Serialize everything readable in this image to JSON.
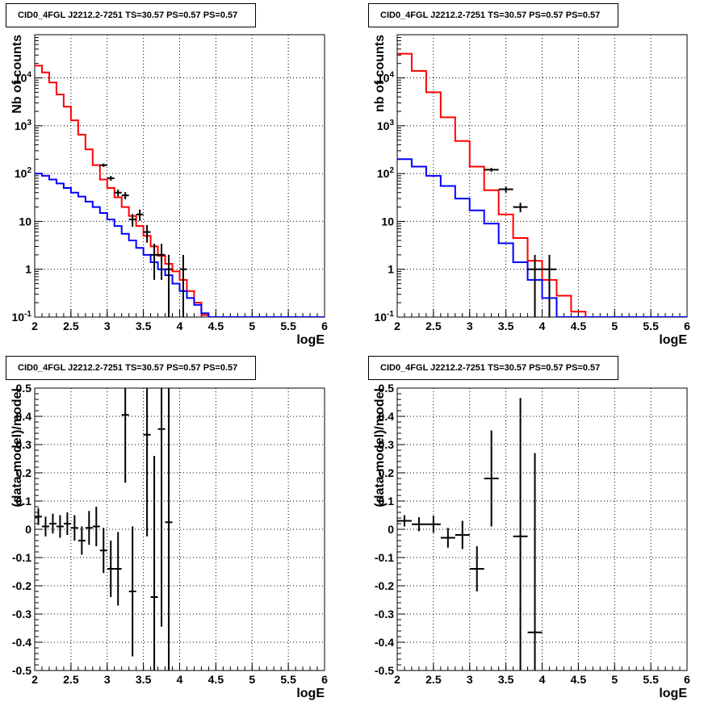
{
  "chart_data": [
    {
      "type": "line",
      "title": "CID0_4FGL J2212.2-7251 TS=30.57 PS=0.57 PS=0.57",
      "xlabel": "logE",
      "ylabel": "Nb of counts",
      "y_scale": "log",
      "xlim": [
        2,
        6
      ],
      "ylim": [
        0.1,
        80000
      ],
      "x_ticks": [
        "2",
        "2.5",
        "3",
        "3.5",
        "4",
        "4.5",
        "5",
        "5.5",
        "6"
      ],
      "y_ticks": [
        "10^-1",
        "1",
        "10",
        "10^2",
        "10^3",
        "10^4"
      ],
      "grid": true,
      "bin_edges": [
        2.0,
        2.1,
        2.2,
        2.3,
        2.4,
        2.5,
        2.6,
        2.7,
        2.8,
        2.9,
        3.0,
        3.1,
        3.2,
        3.3,
        3.4,
        3.5,
        3.6,
        3.7,
        3.8,
        3.9,
        4.0,
        4.1,
        4.2,
        4.3,
        4.4,
        4.5,
        4.6,
        4.7,
        4.8,
        4.9,
        5.0,
        5.1,
        5.2,
        5.3,
        5.4,
        5.5,
        5.6,
        5.7,
        5.8,
        5.9,
        6.0
      ],
      "series": [
        {
          "color": "#ff0000",
          "style": "step",
          "values": [
            18000,
            13000,
            8000,
            4500,
            2500,
            1300,
            650,
            320,
            150,
            75,
            50,
            32,
            20,
            13,
            8,
            5,
            3,
            1.9,
            1.3,
            0.9,
            0.6,
            0.35,
            0.2,
            0.11,
            0.1,
            0.1,
            0.1,
            0.1,
            0.1,
            0.1,
            0.1,
            0.1,
            0.1,
            0.1,
            0.1,
            0.1,
            0.1,
            0.1,
            0.1,
            0.1
          ]
        },
        {
          "color": "#0000ff",
          "style": "step",
          "values": [
            100,
            90,
            75,
            62,
            50,
            40,
            33,
            26,
            20,
            15,
            11,
            8,
            5.5,
            4,
            2.8,
            2,
            1.4,
            1,
            0.75,
            0.5,
            0.35,
            0.25,
            0.18,
            0.12,
            0.1,
            0.1,
            0.1,
            0.1,
            0.1,
            0.1,
            0.1,
            0.1,
            0.1,
            0.1,
            0.1,
            0.1,
            0.1,
            0.1,
            0.1,
            0.1
          ]
        },
        {
          "color": "#000000",
          "style": "points",
          "points": [
            {
              "x": 2.95,
              "y": 150,
              "err": 12
            },
            {
              "x": 3.05,
              "y": 80,
              "err": 9
            },
            {
              "x": 3.15,
              "y": 40,
              "err": 6.5
            },
            {
              "x": 3.25,
              "y": 35,
              "err": 6
            },
            {
              "x": 3.35,
              "y": 11,
              "err": 3.3
            },
            {
              "x": 3.45,
              "y": 14,
              "err": 3.7
            },
            {
              "x": 3.55,
              "y": 6,
              "err": 2.4
            },
            {
              "x": 3.65,
              "y": 2,
              "err": 1.4
            },
            {
              "x": 3.75,
              "y": 2,
              "err": 1.4
            },
            {
              "x": 3.85,
              "y": 1,
              "err": 1.0
            },
            {
              "x": 4.05,
              "y": 1,
              "err": 1.0
            }
          ]
        }
      ]
    },
    {
      "type": "line",
      "title": "CID0_4FGL J2212.2-7251 TS=30.57 PS=0.57 PS=0.57",
      "xlabel": "logE",
      "ylabel": "nb of counts",
      "y_scale": "log",
      "xlim": [
        2,
        6
      ],
      "ylim": [
        0.1,
        80000
      ],
      "x_ticks": [
        "2",
        "2.5",
        "3",
        "3.5",
        "4",
        "4.5",
        "5",
        "5.5",
        "6"
      ],
      "y_ticks": [
        "10^-1",
        "1",
        "10",
        "10^2",
        "10^3",
        "10^4"
      ],
      "grid": true,
      "bin_edges": [
        2.0,
        2.2,
        2.4,
        2.6,
        2.8,
        3.0,
        3.2,
        3.4,
        3.6,
        3.8,
        4.0,
        4.2,
        4.4,
        4.6,
        4.8,
        5.0,
        5.2,
        5.4,
        5.6,
        5.8,
        6.0
      ],
      "series": [
        {
          "color": "#ff0000",
          "style": "step",
          "values": [
            32000,
            14000,
            5000,
            1500,
            480,
            140,
            45,
            14,
            4.5,
            1.5,
            0.6,
            0.28,
            0.13,
            0.1,
            0.1,
            0.1,
            0.1,
            0.1,
            0.1,
            0.1
          ]
        },
        {
          "color": "#0000ff",
          "style": "step",
          "values": [
            200,
            140,
            90,
            55,
            30,
            17,
            9,
            3.5,
            1.4,
            0.6,
            0.25,
            0.1,
            0.1,
            0.1,
            0.1,
            0.1,
            0.1,
            0.1,
            0.1,
            0.1
          ]
        },
        {
          "color": "#000000",
          "style": "points",
          "points": [
            {
              "x": 3.3,
              "y": 120,
              "err": 11
            },
            {
              "x": 3.5,
              "y": 47,
              "err": 6.9
            },
            {
              "x": 3.7,
              "y": 20,
              "err": 4.5
            },
            {
              "x": 3.9,
              "y": 1,
              "err": 1.0
            },
            {
              "x": 4.1,
              "y": 1,
              "err": 1.0
            }
          ]
        }
      ]
    },
    {
      "type": "scatter",
      "title": "CID0_4FGL J2212.2-7251 TS=30.57 PS=0.57 PS=0.57",
      "xlabel": "logE",
      "ylabel": "(data-model)/model",
      "xlim": [
        2,
        6
      ],
      "ylim": [
        -0.5,
        0.5
      ],
      "x_ticks": [
        "2",
        "2.5",
        "3",
        "3.5",
        "4",
        "4.5",
        "5",
        "5.5",
        "6"
      ],
      "y_ticks": [
        "-0.5",
        "-0.4",
        "-0.3",
        "-0.2",
        "-0.1",
        "0",
        "0.1",
        "0.2",
        "0.3",
        "0.4",
        "0.5"
      ],
      "grid": true,
      "x_halfwidth": 0.05,
      "points": [
        {
          "x": 2.05,
          "y": 0.045,
          "err": 0.03
        },
        {
          "x": 2.15,
          "y": 0.01,
          "err": 0.035
        },
        {
          "x": 2.25,
          "y": 0.02,
          "err": 0.035
        },
        {
          "x": 2.35,
          "y": 0.01,
          "err": 0.04
        },
        {
          "x": 2.45,
          "y": 0.02,
          "err": 0.04
        },
        {
          "x": 2.55,
          "y": 0.005,
          "err": 0.045
        },
        {
          "x": 2.65,
          "y": -0.04,
          "err": 0.05
        },
        {
          "x": 2.75,
          "y": 0.005,
          "err": 0.06
        },
        {
          "x": 2.85,
          "y": 0.01,
          "err": 0.07
        },
        {
          "x": 2.95,
          "y": -0.075,
          "err": 0.08
        },
        {
          "x": 3.05,
          "y": -0.14,
          "err": 0.1
        },
        {
          "x": 3.15,
          "y": -0.14,
          "err": 0.13
        },
        {
          "x": 3.25,
          "y": 0.405,
          "err": 0.24
        },
        {
          "x": 3.35,
          "y": -0.22,
          "err": 0.23
        },
        {
          "x": 3.55,
          "y": 0.335,
          "err": 0.36
        },
        {
          "x": 3.65,
          "y": -0.24,
          "err": 0.5
        },
        {
          "x": 3.75,
          "y": 0.355,
          "err": 0.7
        },
        {
          "x": 3.85,
          "y": 0.025,
          "err": 1.0
        }
      ]
    },
    {
      "type": "scatter",
      "title": "CID0_4FGL J2212.2-7251 TS=30.57 PS=0.57 PS=0.57",
      "xlabel": "logE",
      "ylabel": "(data-model)/model",
      "xlim": [
        2,
        6
      ],
      "ylim": [
        -0.5,
        0.5
      ],
      "x_ticks": [
        "2",
        "2.5",
        "3",
        "3.5",
        "4",
        "4.5",
        "5",
        "5.5",
        "6"
      ],
      "y_ticks": [
        "-0.5",
        "-0.4",
        "-0.3",
        "-0.2",
        "-0.1",
        "0",
        "0.1",
        "0.2",
        "0.3",
        "0.4",
        "0.5"
      ],
      "grid": true,
      "x_halfwidth": 0.1,
      "points": [
        {
          "x": 2.1,
          "y": 0.03,
          "err": 0.02
        },
        {
          "x": 2.3,
          "y": 0.018,
          "err": 0.025
        },
        {
          "x": 2.5,
          "y": 0.018,
          "err": 0.03
        },
        {
          "x": 2.7,
          "y": -0.03,
          "err": 0.035
        },
        {
          "x": 2.9,
          "y": -0.02,
          "err": 0.05
        },
        {
          "x": 3.1,
          "y": -0.14,
          "err": 0.08
        },
        {
          "x": 3.3,
          "y": 0.18,
          "err": 0.17
        },
        {
          "x": 3.7,
          "y": -0.025,
          "err": 0.49
        },
        {
          "x": 3.9,
          "y": -0.365,
          "err": 0.635
        }
      ]
    }
  ]
}
